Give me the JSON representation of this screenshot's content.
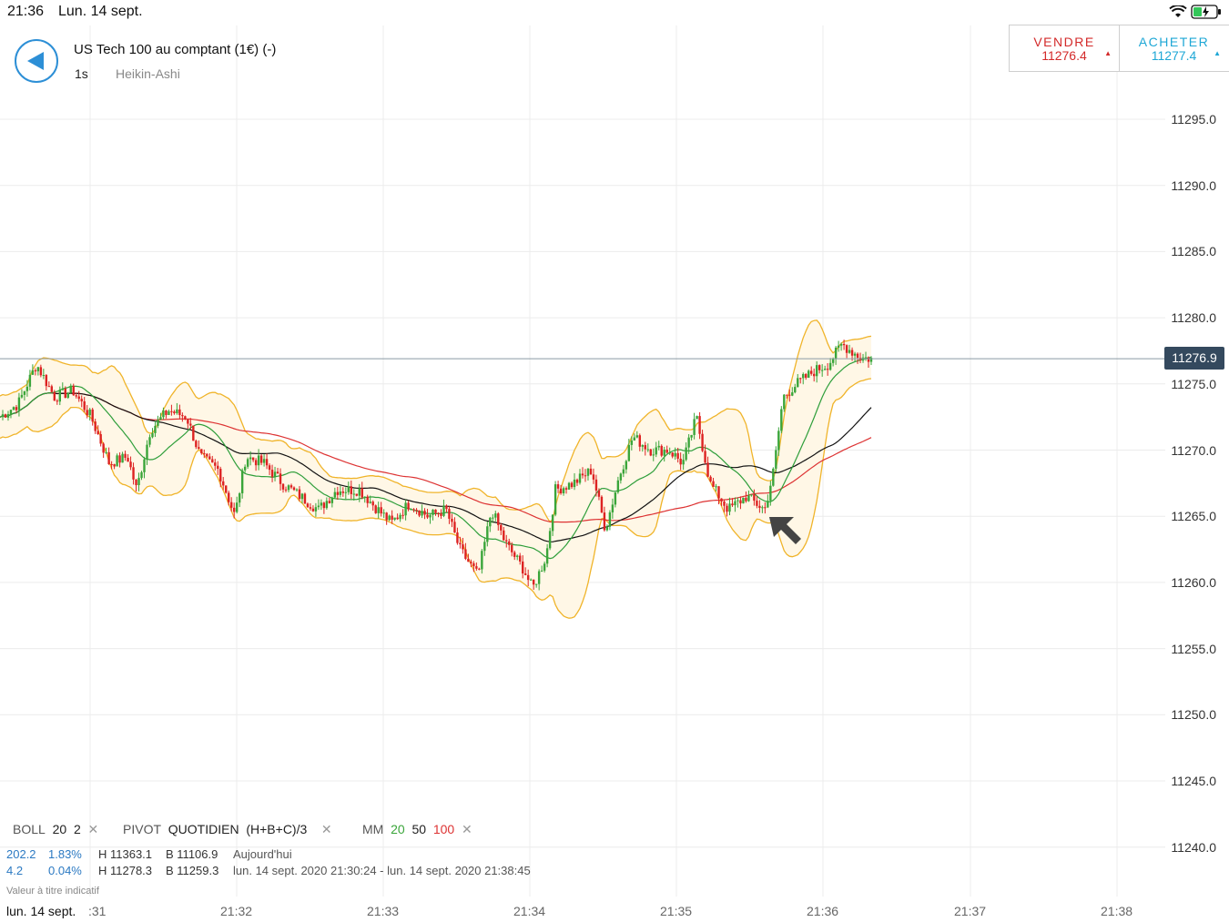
{
  "status_bar": {
    "time": "21:36",
    "date": "Lun. 14 sept."
  },
  "instrument": {
    "name": "US Tech 100 au comptant (1€) (-)",
    "interval": "1s",
    "chart_style": "Heikin-Ashi"
  },
  "trade": {
    "sell_label": "VENDRE",
    "sell_price": "11276.4",
    "sell_color": "#d32a2a",
    "buy_label": "ACHETER",
    "buy_price": "11277.4",
    "buy_color": "#1ea7d6"
  },
  "current_price": "11276.9",
  "indicators": {
    "boll": {
      "label": "BOLL",
      "period": "20",
      "deviation": "2"
    },
    "pivot": {
      "label": "PIVOT",
      "mode": "QUOTIDIEN",
      "formula": "(H+B+C)/3"
    },
    "mm": {
      "label": "MM",
      "p1": "20",
      "p2": "50",
      "p3": "100"
    }
  },
  "stats": {
    "change_points": "202.2",
    "change_pct": "1.83%",
    "high": "H 11363.1",
    "low": "B 11106.9",
    "range_label": "Aujourd'hui",
    "change2_points": "4.2",
    "change2_pct": "0.04%",
    "high2": "H 11278.3",
    "low2": "B 11259.3",
    "range2_label": "lun. 14 sept. 2020 21:30:24 - lun. 14 sept. 2020 21:38:45"
  },
  "disclaimer": "Valeur à titre indicatif",
  "x_axis": {
    "date_label": "lun. 14 sept.",
    "first_tick": ":31"
  },
  "chart_data": {
    "type": "candlestick",
    "y_ticks": [
      "11295.0",
      "11290.0",
      "11285.0",
      "11280.0",
      "11275.0",
      "11270.0",
      "11265.0",
      "11260.0",
      "11255.0",
      "11250.0",
      "11245.0",
      "11240.0"
    ],
    "x_ticks": [
      "21:32",
      "21:33",
      "21:34",
      "21:35",
      "21:36",
      "21:37",
      "21:38"
    ],
    "ylim": [
      11238.0,
      11302.0
    ],
    "grid": true,
    "colors": {
      "up": "#3aa53a",
      "down": "#dd2222",
      "boll": "#f0b42a",
      "ma20": "#2e9e3a",
      "ma50": "#111111",
      "ma100": "#dd3333"
    },
    "close_path": [
      [
        0,
        11272.5
      ],
      [
        20,
        11273.5
      ],
      [
        40,
        11276.5
      ],
      [
        60,
        11274.0
      ],
      [
        80,
        11274.5
      ],
      [
        100,
        11272.5
      ],
      [
        120,
        11269.0
      ],
      [
        140,
        11269.5
      ],
      [
        150,
        11267.0
      ],
      [
        165,
        11271.5
      ],
      [
        185,
        11273.0
      ],
      [
        205,
        11272.5
      ],
      [
        220,
        11269.5
      ],
      [
        240,
        11268.5
      ],
      [
        258,
        11265.0
      ],
      [
        270,
        11269.5
      ],
      [
        290,
        11269.0
      ],
      [
        310,
        11267.5
      ],
      [
        330,
        11266.5
      ],
      [
        350,
        11265.5
      ],
      [
        370,
        11267.0
      ],
      [
        395,
        11267.0
      ],
      [
        415,
        11265.5
      ],
      [
        430,
        11264.5
      ],
      [
        450,
        11266.0
      ],
      [
        470,
        11265.0
      ],
      [
        490,
        11265.5
      ],
      [
        505,
        11262.5
      ],
      [
        525,
        11260.5
      ],
      [
        540,
        11265.5
      ],
      [
        555,
        11263.0
      ],
      [
        575,
        11261.0
      ],
      [
        585,
        11259.5
      ],
      [
        600,
        11262.0
      ],
      [
        610,
        11267.0
      ],
      [
        630,
        11267.5
      ],
      [
        650,
        11268.5
      ],
      [
        665,
        11264.0
      ],
      [
        680,
        11268.0
      ],
      [
        695,
        11271.0
      ],
      [
        715,
        11270.0
      ],
      [
        735,
        11270.0
      ],
      [
        750,
        11269.0
      ],
      [
        765,
        11272.5
      ],
      [
        780,
        11267.5
      ],
      [
        800,
        11265.5
      ],
      [
        820,
        11266.5
      ],
      [
        840,
        11265.5
      ],
      [
        850,
        11268.5
      ],
      [
        860,
        11274.0
      ],
      [
        875,
        11275.0
      ],
      [
        895,
        11276.0
      ],
      [
        910,
        11276.5
      ],
      [
        925,
        11278.0
      ],
      [
        945,
        11277.0
      ],
      [
        957,
        11276.9
      ]
    ]
  }
}
